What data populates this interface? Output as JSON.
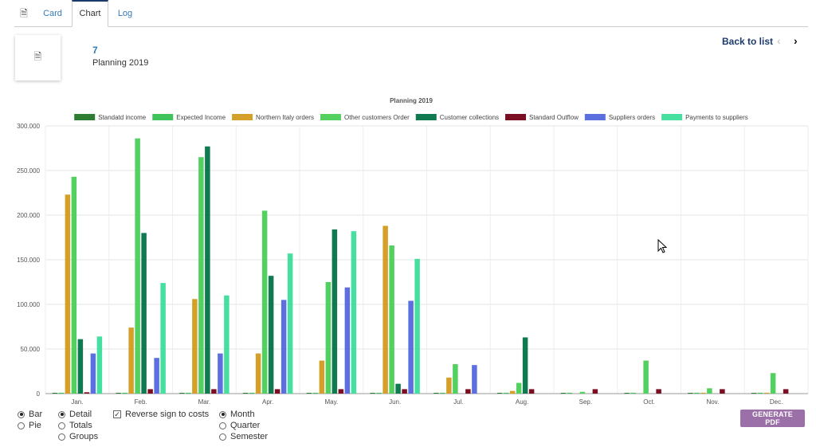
{
  "tabs": [
    {
      "icon": "document-icon"
    },
    {
      "label": "Card"
    },
    {
      "label": "Chart",
      "active": true
    },
    {
      "label": "Log"
    }
  ],
  "record": {
    "number": "7",
    "name": "Planning 2019"
  },
  "nav": {
    "back_label": "Back to list"
  },
  "options": {
    "chart_type": [
      {
        "label": "Bar",
        "selected": true
      },
      {
        "label": "Pie",
        "selected": false
      }
    ],
    "detail": [
      {
        "label": "Detail",
        "selected": true
      },
      {
        "label": "Totals",
        "selected": false
      },
      {
        "label": "Groups",
        "selected": false
      }
    ],
    "reverse_sign": {
      "label": "Reverse sign to costs",
      "checked": true
    },
    "period": [
      {
        "label": "Month",
        "selected": true
      },
      {
        "label": "Quarter",
        "selected": false
      },
      {
        "label": "Semester",
        "selected": false
      }
    ]
  },
  "generate_pdf_label": "GENERATE PDF",
  "chart_data": {
    "type": "bar",
    "title": "Planning 2019",
    "categories": [
      "Jan.",
      "Feb.",
      "Mar.",
      "Apr.",
      "May.",
      "Jun.",
      "Jul.",
      "Aug.",
      "Sep.",
      "Oct.",
      "Nov.",
      "Dec."
    ],
    "ylim": [
      0,
      300000
    ],
    "yticks": [
      "0",
      "50.000",
      "100.000",
      "150.000",
      "200.000",
      "250.000",
      "300.000"
    ],
    "legend_position": "top",
    "grid": true,
    "series": [
      {
        "name": "Standatd income",
        "color": "#2e7d32",
        "values": [
          500,
          500,
          500,
          500,
          500,
          500,
          500,
          500,
          500,
          500,
          500,
          500
        ]
      },
      {
        "name": "Expected Income",
        "color": "#3ec45a",
        "values": [
          1000,
          1000,
          1000,
          1000,
          1000,
          1000,
          1000,
          1000,
          1000,
          1000,
          1000,
          1000
        ]
      },
      {
        "name": "Northern Italy orders",
        "color": "#d4a02a",
        "values": [
          223000,
          74000,
          106000,
          45000,
          37000,
          188000,
          18000,
          3000,
          0,
          0,
          1000,
          1000
        ]
      },
      {
        "name": "Other customers Order",
        "color": "#52d160",
        "values": [
          243000,
          286000,
          265000,
          205000,
          125000,
          166000,
          33000,
          12000,
          2000,
          37000,
          6000,
          23000
        ]
      },
      {
        "name": "Customer collections",
        "color": "#0f7a52",
        "values": [
          61000,
          180000,
          277000,
          132000,
          184000,
          11000,
          0,
          63000,
          0,
          0,
          0,
          0
        ]
      },
      {
        "name": "Standard Outflow",
        "color": "#7a0e22",
        "values": [
          1500,
          5000,
          5000,
          5000,
          5000,
          5000,
          5000,
          5000,
          5000,
          5000,
          5000,
          5000
        ]
      },
      {
        "name": "Suppliers orders",
        "color": "#5b6fdf",
        "values": [
          45000,
          40000,
          45000,
          105000,
          119000,
          104000,
          32000,
          0,
          0,
          0,
          0,
          0
        ]
      },
      {
        "name": "Payments to suppliers",
        "color": "#45e0a0",
        "values": [
          64000,
          124000,
          110000,
          157000,
          182000,
          151000,
          0,
          0,
          0,
          0,
          0,
          0
        ]
      }
    ]
  }
}
